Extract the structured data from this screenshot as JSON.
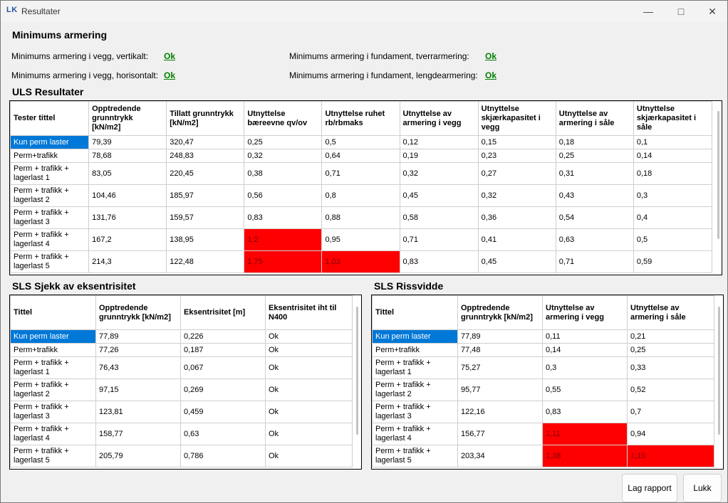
{
  "window": {
    "icon": "LK",
    "title": "Resultater",
    "minimize_icon": "minimize-icon",
    "maximize_icon": "maximize-icon",
    "close_icon": "close-icon"
  },
  "minimum": {
    "heading": "Minimums armering",
    "rows": [
      {
        "label": "Minimums armering i vegg, vertikalt:",
        "value": "Ok"
      },
      {
        "label": "Minimums armering i vegg, horisontalt:",
        "value": "Ok"
      },
      {
        "label": "Minimums armering i fundament, tverrarmering:",
        "value": "Ok"
      },
      {
        "label": "Minimums armering i fundament, lengdearmering:",
        "value": "Ok"
      }
    ]
  },
  "uls": {
    "heading": "ULS Resultater",
    "headers": [
      "Tester tittel",
      "Opptredende grunntrykk [kN/m2]",
      "Tillatt grunntrykk [kN/m2]",
      "Utnyttelse bæreevne qv/ov",
      "Utnyttelse ruhet rb/rbmaks",
      "Utnyttelse av armering i vegg",
      "Utnyttelse skjærkapasitet i vegg",
      "Utnyttelse av armering i såle",
      "Utnyttelse skjærkapasitet i såle"
    ],
    "rows": [
      [
        "Kun perm laster",
        "79,39",
        "320,47",
        "0,25",
        "0,5",
        "0,12",
        "0,15",
        "0,18",
        "0,1"
      ],
      [
        "Perm+trafikk",
        "78,68",
        "248,83",
        "0,32",
        "0,64",
        "0,19",
        "0,23",
        "0,25",
        "0,14"
      ],
      [
        "Perm + trafikk + lagerlast 1",
        "83,05",
        "220,45",
        "0,38",
        "0,71",
        "0,32",
        "0,27",
        "0,31",
        "0,18"
      ],
      [
        "Perm + trafikk + lagerlast 2",
        "104,46",
        "185,97",
        "0,56",
        "0,8",
        "0,45",
        "0,32",
        "0,43",
        "0,3"
      ],
      [
        "Perm + trafikk + lagerlast 3",
        "131,76",
        "159,57",
        "0,83",
        "0,88",
        "0,58",
        "0,36",
        "0,54",
        "0,4"
      ],
      [
        "Perm + trafikk + lagerlast 4",
        "167,2",
        "138,95",
        "1,2",
        "0,95",
        "0,71",
        "0,41",
        "0,63",
        "0,5"
      ],
      [
        "Perm + trafikk + lagerlast 5",
        "214,3",
        "122,48",
        "1,75",
        "1,03",
        "0,83",
        "0,45",
        "0,71",
        "0,59"
      ]
    ]
  },
  "sls_ecc": {
    "heading": "SLS Sjekk av eksentrisitet",
    "headers": [
      "Tittel",
      "Opptredende grunntrykk [kN/m2]",
      "Eksentrisitet [m]",
      "Eksentrisitet iht til N400"
    ],
    "rows": [
      [
        "Kun perm laster",
        "77,89",
        "0,226",
        "Ok"
      ],
      [
        "Perm+trafikk",
        "77,26",
        "0,187",
        "Ok"
      ],
      [
        "Perm + trafikk + lagerlast 1",
        "76,43",
        "0,067",
        "Ok"
      ],
      [
        "Perm + trafikk + lagerlast 2",
        "97,15",
        "0,269",
        "Ok"
      ],
      [
        "Perm + trafikk + lagerlast 3",
        "123,81",
        "0,459",
        "Ok"
      ],
      [
        "Perm + trafikk + lagerlast 4",
        "158,77",
        "0,63",
        "Ok"
      ],
      [
        "Perm + trafikk + lagerlast 5",
        "205,79",
        "0,786",
        "Ok"
      ]
    ]
  },
  "sls_crack": {
    "heading": "SLS Rissvidde",
    "headers": [
      "Tittel",
      "Opptredende grunntrykk [kN/m2]",
      "Utnyttelse av armering i vegg",
      "Utnyttelse av armering i såle"
    ],
    "rows": [
      [
        "Kun perm laster",
        "77,89",
        "0,11",
        "0,21"
      ],
      [
        "Perm+trafikk",
        "77,48",
        "0,14",
        "0,25"
      ],
      [
        "Perm + trafikk + lagerlast 1",
        "75,27",
        "0,3",
        "0,33"
      ],
      [
        "Perm + trafikk + lagerlast 2",
        "95,77",
        "0,55",
        "0,52"
      ],
      [
        "Perm + trafikk + lagerlast 3",
        "122,16",
        "0,83",
        "0,7"
      ],
      [
        "Perm + trafikk + lagerlast 4",
        "156,77",
        "1,11",
        "0,94"
      ],
      [
        "Perm + trafikk + lagerlast 5",
        "203,34",
        "1,38",
        "1,15"
      ]
    ]
  },
  "buttons": {
    "report": "Lag rapport",
    "close": "Lukk"
  },
  "colors": {
    "selected": "#0078d7",
    "exceeded": "#ff0000",
    "ok": "#008000"
  }
}
